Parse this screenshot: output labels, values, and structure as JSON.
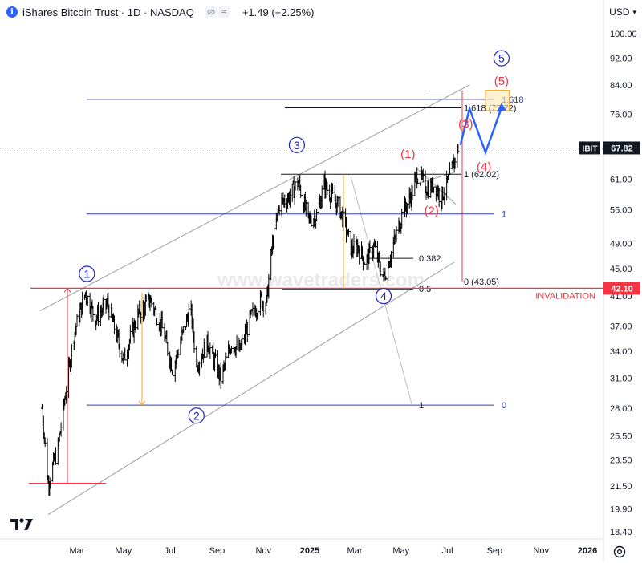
{
  "header": {
    "info_icon": "i",
    "title": "iShares Bitcoin Trust · 1D · NASDAQ",
    "pill1_icon": "eye-off-icon",
    "pill2": "≈",
    "change": "+1.49 (+2.25%)",
    "currency": "USD"
  },
  "colors": {
    "candle": "#000000",
    "wave_red": "#f23645",
    "wave_blue": "#1e23c8",
    "level_blue": "#2a3fb5",
    "channel_gray": "#9e9e9e",
    "measure_orange": "#f5a623",
    "invalidation": "#f23645"
  },
  "chart_data": {
    "type": "candlestick",
    "title": "iShares Bitcoin Trust · 1D · NASDAQ",
    "y_axis": {
      "scale": "log",
      "ticks": [
        18.4,
        19.9,
        21.5,
        23.5,
        25.5,
        28.0,
        31.0,
        34.0,
        37.0,
        41.0,
        45.0,
        49.0,
        55.0,
        61.0,
        68.0,
        76.0,
        84.0,
        92.0,
        100.0
      ],
      "tick_labels": [
        "18.40",
        "19.90",
        "21.50",
        "23.50",
        "25.50",
        "28.00",
        "31.00",
        "34.00",
        "37.00",
        "41.00",
        "45.00",
        "49.00",
        "55.00",
        "61.00",
        "68.00",
        "76.00",
        "84.00",
        "92.00",
        "100.00"
      ]
    },
    "x_axis": {
      "ticks": [
        "2024-03-01",
        "2024-05-01",
        "2024-07-01",
        "2024-09-01",
        "2024-11-01",
        "2025-01-01",
        "2025-03-01",
        "2025-05-01",
        "2025-07-01",
        "2025-09-01",
        "2025-11-01",
        "2026-01-01"
      ],
      "tick_labels": [
        "Mar",
        "May",
        "Jul",
        "Sep",
        "Nov",
        "2025",
        "Mar",
        "May",
        "Jul",
        "Sep",
        "Nov",
        "2026"
      ]
    },
    "price_path": [
      [
        "2024-01-15",
        28.0
      ],
      [
        "2024-01-23",
        21.7
      ],
      [
        "2024-02-05",
        24.5
      ],
      [
        "2024-02-15",
        29.5
      ],
      [
        "2024-02-26",
        36.0
      ],
      [
        "2024-03-12",
        41.5
      ],
      [
        "2024-03-25",
        38.0
      ],
      [
        "2024-04-10",
        40.0
      ],
      [
        "2024-04-20",
        36.5
      ],
      [
        "2024-05-01",
        33.0
      ],
      [
        "2024-05-20",
        38.5
      ],
      [
        "2024-06-05",
        40.5
      ],
      [
        "2024-06-20",
        37.0
      ],
      [
        "2024-07-05",
        32.0
      ],
      [
        "2024-07-28",
        39.5
      ],
      [
        "2024-08-05",
        32.5
      ],
      [
        "2024-08-20",
        35.0
      ],
      [
        "2024-09-06",
        31.0
      ],
      [
        "2024-09-20",
        35.0
      ],
      [
        "2024-10-01",
        34.0
      ],
      [
        "2024-10-15",
        38.0
      ],
      [
        "2024-10-29",
        40.5
      ],
      [
        "2024-11-05",
        40.0
      ],
      [
        "2024-11-12",
        48.0
      ],
      [
        "2024-11-22",
        56.0
      ],
      [
        "2024-12-05",
        57.5
      ],
      [
        "2024-12-17",
        60.5
      ],
      [
        "2024-12-30",
        53.0
      ],
      [
        "2025-01-10",
        54.0
      ],
      [
        "2025-01-20",
        60.0
      ],
      [
        "2025-01-30",
        57.5
      ],
      [
        "2025-02-10",
        55.0
      ],
      [
        "2025-02-25",
        48.0
      ],
      [
        "2025-03-05",
        48.5
      ],
      [
        "2025-03-15",
        46.0
      ],
      [
        "2025-03-26",
        48.5
      ],
      [
        "2025-04-08",
        43.6
      ],
      [
        "2025-04-18",
        47.5
      ],
      [
        "2025-05-02",
        54.0
      ],
      [
        "2025-05-15",
        58.0
      ],
      [
        "2025-05-22",
        62.0
      ],
      [
        "2025-06-05",
        59.0
      ],
      [
        "2025-06-15",
        60.0
      ],
      [
        "2025-06-22",
        57.0
      ],
      [
        "2025-07-03",
        61.0
      ],
      [
        "2025-07-10",
        65.0
      ],
      [
        "2025-07-15",
        67.82
      ]
    ],
    "last_price": "67.82",
    "last_price_tag": "IBIT",
    "change_text": "+1.49 (+2.25%)",
    "levels": [
      {
        "name": "fib-1-618",
        "label": "1.618 (77.72)",
        "value": 77.72
      },
      {
        "name": "fib-1-0",
        "label": "1 (62.02)",
        "value": 62.02
      },
      {
        "name": "fib-0",
        "label": "0 (43.05)",
        "value": 43.05
      },
      {
        "name": "fib-0-382",
        "label": "0.382",
        "value": 46.6
      },
      {
        "name": "fib-0-5",
        "label": "0.5",
        "value": 42.0
      },
      {
        "name": "blue-1618",
        "label": "1.618",
        "value": 80.0
      },
      {
        "name": "blue-1",
        "label": "1",
        "value": 54.2
      },
      {
        "name": "blue-0",
        "label": "0",
        "value": 28.3
      },
      {
        "name": "blue-mid-1",
        "label": "1",
        "value": 28.3
      },
      {
        "name": "invalidation",
        "label": "INVALIDATION",
        "value": 42.1,
        "tag": "42.10"
      }
    ],
    "wave_labels_major": [
      {
        "label": "1",
        "date": "2024-03-14",
        "price": 44.2
      },
      {
        "label": "2",
        "date": "2024-08-05",
        "price": 27.3
      },
      {
        "label": "3",
        "date": "2024-12-15",
        "price": 68.5
      },
      {
        "label": "4",
        "date": "2025-04-08",
        "price": 41.0
      },
      {
        "label": "5",
        "date": "2025-09-10",
        "price": 92.0
      }
    ],
    "wave_labels_minor": [
      {
        "label": "(1)",
        "date": "2025-05-10",
        "price": 66.4
      },
      {
        "label": "(2)",
        "date": "2025-06-10",
        "price": 54.8
      },
      {
        "label": "(3)",
        "date": "2025-07-25",
        "price": 73.6
      },
      {
        "label": "(4)",
        "date": "2025-08-18",
        "price": 63.6
      },
      {
        "label": "(5)",
        "date": "2025-09-10",
        "price": 85.2
      }
    ],
    "projection": [
      [
        "2025-07-18",
        68.5
      ],
      [
        "2025-07-30",
        77.5
      ],
      [
        "2025-08-20",
        66.8
      ],
      [
        "2025-09-10",
        77.7
      ]
    ],
    "target_box": {
      "from": "2025-08-20",
      "to": "2025-09-20",
      "low": 77.0,
      "high": 82.5
    },
    "watermark": "www.wavetraders.com"
  }
}
